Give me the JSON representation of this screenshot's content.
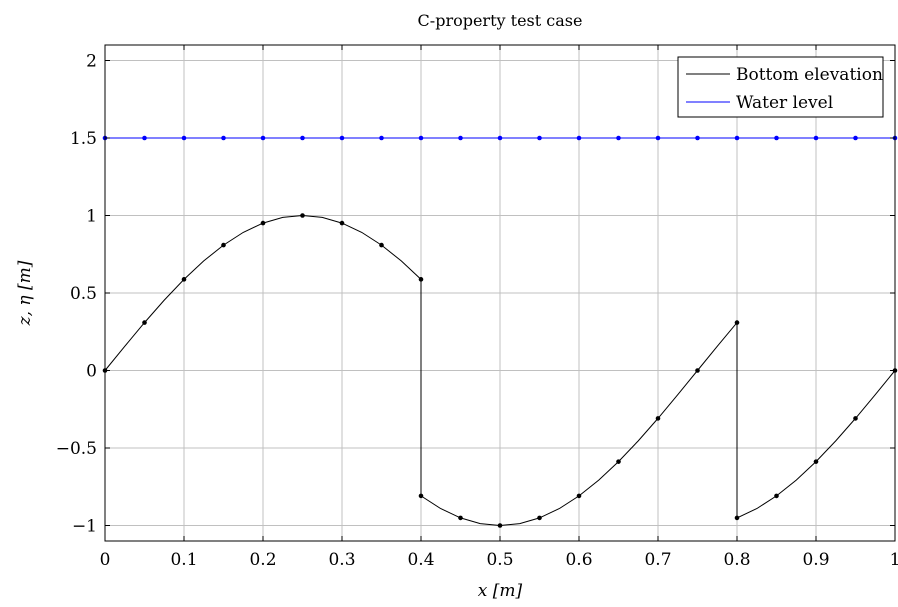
{
  "chart_data": {
    "type": "line",
    "title": "C-property test case",
    "xlabel": "x [m]",
    "ylabel": "z, η [m]",
    "xlim": [
      0,
      1
    ],
    "ylim": [
      -1.1,
      2.1
    ],
    "x_ticks": [
      0,
      0.1,
      0.2,
      0.3,
      0.4,
      0.5,
      0.6,
      0.7,
      0.8,
      0.9,
      1
    ],
    "x_tick_labels": [
      "0",
      "0.1",
      "0.2",
      "0.3",
      "0.4",
      "0.5",
      "0.6",
      "0.7",
      "0.8",
      "0.9",
      "1"
    ],
    "y_ticks": [
      -1,
      -0.5,
      0,
      0.5,
      1,
      1.5,
      2
    ],
    "y_tick_labels": [
      "−1",
      "−0.5",
      "0",
      "0.5",
      "1",
      "1.5",
      "2"
    ],
    "grid": true,
    "legend_position": "top-right",
    "series": [
      {
        "name": "Bottom elevation",
        "color": "#000000",
        "curve_points": [
          [
            0,
            0
          ],
          [
            0.025,
            0.156
          ],
          [
            0.05,
            0.309
          ],
          [
            0.075,
            0.454
          ],
          [
            0.1,
            0.588
          ],
          [
            0.125,
            0.707
          ],
          [
            0.15,
            0.809
          ],
          [
            0.175,
            0.891
          ],
          [
            0.2,
            0.951
          ],
          [
            0.225,
            0.988
          ],
          [
            0.25,
            1.0
          ],
          [
            0.275,
            0.988
          ],
          [
            0.3,
            0.951
          ],
          [
            0.325,
            0.891
          ],
          [
            0.35,
            0.809
          ],
          [
            0.375,
            0.707
          ],
          [
            0.4,
            0.588
          ],
          [
            0.4,
            -0.809
          ],
          [
            0.425,
            -0.891
          ],
          [
            0.45,
            -0.951
          ],
          [
            0.475,
            -0.988
          ],
          [
            0.5,
            -1.0
          ],
          [
            0.525,
            -0.988
          ],
          [
            0.55,
            -0.951
          ],
          [
            0.575,
            -0.891
          ],
          [
            0.6,
            -0.809
          ],
          [
            0.625,
            -0.707
          ],
          [
            0.65,
            -0.588
          ],
          [
            0.675,
            -0.454
          ],
          [
            0.7,
            -0.309
          ],
          [
            0.725,
            -0.156
          ],
          [
            0.75,
            0
          ],
          [
            0.775,
            0.156
          ],
          [
            0.8,
            0.309
          ],
          [
            0.8,
            -0.951
          ],
          [
            0.825,
            -0.891
          ],
          [
            0.85,
            -0.809
          ],
          [
            0.875,
            -0.707
          ],
          [
            0.9,
            -0.588
          ],
          [
            0.925,
            -0.454
          ],
          [
            0.95,
            -0.309
          ],
          [
            0.975,
            -0.156
          ],
          [
            1.0,
            0
          ]
        ],
        "marker_points": [
          [
            0,
            0
          ],
          [
            0.05,
            0.309
          ],
          [
            0.1,
            0.588
          ],
          [
            0.15,
            0.809
          ],
          [
            0.2,
            0.951
          ],
          [
            0.25,
            1.0
          ],
          [
            0.3,
            0.951
          ],
          [
            0.35,
            0.809
          ],
          [
            0.4,
            0.588
          ],
          [
            0.4,
            -0.809
          ],
          [
            0.45,
            -0.951
          ],
          [
            0.5,
            -1.0
          ],
          [
            0.55,
            -0.951
          ],
          [
            0.6,
            -0.809
          ],
          [
            0.65,
            -0.588
          ],
          [
            0.7,
            -0.309
          ],
          [
            0.75,
            0
          ],
          [
            0.8,
            0.309
          ],
          [
            0.8,
            -0.951
          ],
          [
            0.85,
            -0.809
          ],
          [
            0.9,
            -0.588
          ],
          [
            0.95,
            -0.309
          ],
          [
            1.0,
            0
          ]
        ]
      },
      {
        "name": "Water level",
        "color": "#0000ff",
        "curve_points": [
          [
            0,
            1.5
          ],
          [
            1,
            1.5
          ]
        ],
        "marker_points": [
          [
            0,
            1.5
          ],
          [
            0.05,
            1.5
          ],
          [
            0.1,
            1.5
          ],
          [
            0.15,
            1.5
          ],
          [
            0.2,
            1.5
          ],
          [
            0.25,
            1.5
          ],
          [
            0.3,
            1.5
          ],
          [
            0.35,
            1.5
          ],
          [
            0.4,
            1.5
          ],
          [
            0.45,
            1.5
          ],
          [
            0.5,
            1.5
          ],
          [
            0.55,
            1.5
          ],
          [
            0.6,
            1.5
          ],
          [
            0.65,
            1.5
          ],
          [
            0.7,
            1.5
          ],
          [
            0.75,
            1.5
          ],
          [
            0.8,
            1.5
          ],
          [
            0.85,
            1.5
          ],
          [
            0.9,
            1.5
          ],
          [
            0.95,
            1.5
          ],
          [
            1.0,
            1.5
          ]
        ]
      }
    ]
  }
}
